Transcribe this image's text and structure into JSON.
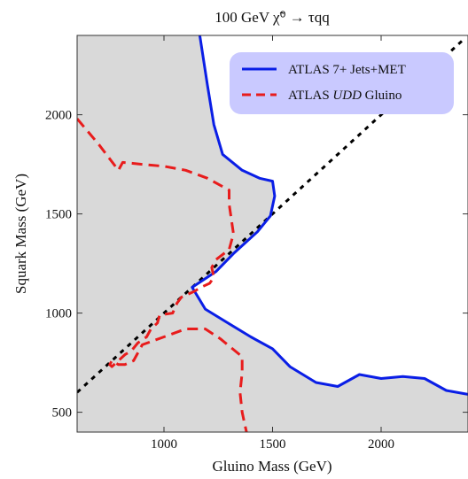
{
  "chart_data": {
    "type": "line",
    "title": "100 GeV χ̃⁰ → τqq",
    "xlabel": "Gluino Mass (GeV)",
    "ylabel": "Squark Mass (GeV)",
    "xlim": [
      600,
      2400
    ],
    "ylim": [
      400,
      2400
    ],
    "xticks": [
      1000,
      1500,
      2000
    ],
    "yticks": [
      500,
      1000,
      1500,
      2000
    ],
    "grid": false,
    "legend_position": "top-right",
    "legend_background": "#c9c9ff",
    "region_color": "#d9d9d9",
    "series": [
      {
        "name": "ATLAS 7+ Jets+MET",
        "color": "#0a1ee6",
        "style": "solid",
        "x": [
          1165,
          1200,
          1230,
          1270,
          1360,
          1440,
          1500,
          1510,
          1490,
          1430,
          1320,
          1240,
          1130,
          1190,
          1220,
          1280,
          1400,
          1500,
          1580,
          1700,
          1800,
          1900,
          2000,
          2100,
          2200,
          2300,
          2400
        ],
        "y": [
          2400,
          2150,
          1950,
          1800,
          1720,
          1680,
          1665,
          1590,
          1490,
          1410,
          1300,
          1210,
          1130,
          1020,
          1000,
          960,
          880,
          820,
          730,
          650,
          630,
          690,
          670,
          680,
          670,
          610,
          590
        ]
      },
      {
        "name": "ATLAS UDD Gluino",
        "name_prefix": "ATLAS ",
        "name_italic": "UDD",
        "name_suffix": " Gluino",
        "color": "#e81c1c",
        "style": "dashed",
        "x": [
          600,
          700,
          790,
          810,
          900,
          1000,
          1100,
          1200,
          1300,
          1300,
          1320,
          1300,
          1240,
          1220,
          1230,
          1210,
          1170,
          1140,
          1080,
          1060,
          1040,
          980,
          970,
          940,
          920,
          880,
          850,
          820,
          790,
          760,
          750,
          760,
          790,
          820,
          860,
          900,
          1000,
          1100,
          1190,
          1260,
          1360,
          1360,
          1350,
          1360,
          1370,
          1380
        ],
        "y": [
          1980,
          1850,
          1720,
          1760,
          1750,
          1740,
          1720,
          1680,
          1620,
          1550,
          1400,
          1320,
          1270,
          1230,
          1180,
          1150,
          1130,
          1110,
          1080,
          1050,
          1000,
          990,
          950,
          920,
          880,
          850,
          810,
          790,
          760,
          730,
          740,
          760,
          740,
          740,
          760,
          840,
          880,
          920,
          920,
          870,
          780,
          700,
          600,
          500,
          450,
          400
        ]
      },
      {
        "name": "",
        "color": "#000000",
        "style": "dotted",
        "x": [
          600,
          2380
        ],
        "y": [
          600,
          2380
        ]
      }
    ]
  }
}
